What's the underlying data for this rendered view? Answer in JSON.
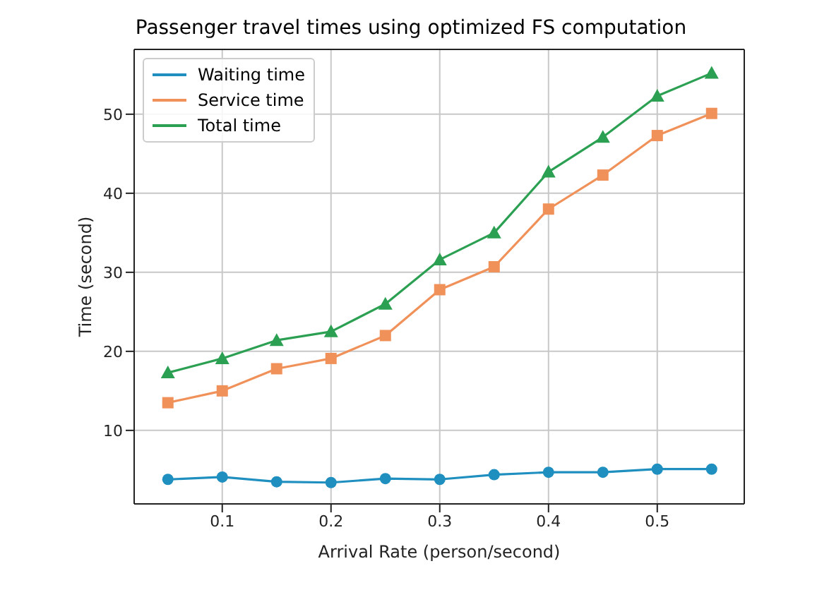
{
  "chart_data": {
    "type": "line",
    "title": "Passenger travel times using optimized FS computation",
    "xlabel": "Arrival Rate (person/second)",
    "ylabel": "Time (second)",
    "x": [
      0.05,
      0.1,
      0.15,
      0.2,
      0.25,
      0.3,
      0.35,
      0.4,
      0.45,
      0.5,
      0.55
    ],
    "series": [
      {
        "name": "Waiting time",
        "color": "#1f8fc0",
        "marker": "circle",
        "values": [
          3.8,
          4.1,
          3.5,
          3.4,
          3.9,
          3.8,
          4.4,
          4.7,
          4.7,
          5.1,
          5.1
        ]
      },
      {
        "name": "Service time",
        "color": "#f0915a",
        "marker": "square",
        "values": [
          13.5,
          15,
          17.8,
          19.1,
          22,
          27.8,
          30.7,
          38,
          42.3,
          47.3,
          50.1
        ]
      },
      {
        "name": "Total time",
        "color": "#2ca052",
        "marker": "triangle",
        "values": [
          17.3,
          19.1,
          21.4,
          22.5,
          26,
          31.6,
          35,
          42.7,
          47.1,
          52.3,
          55.2
        ]
      }
    ],
    "xlim": [
      0.019,
      0.58
    ],
    "ylim": [
      0.7,
      58.2
    ],
    "xticks": [
      0.1,
      0.2,
      0.3,
      0.4,
      0.5
    ],
    "yticks": [
      10,
      20,
      30,
      40,
      50
    ],
    "grid": true,
    "legend": "top left"
  }
}
